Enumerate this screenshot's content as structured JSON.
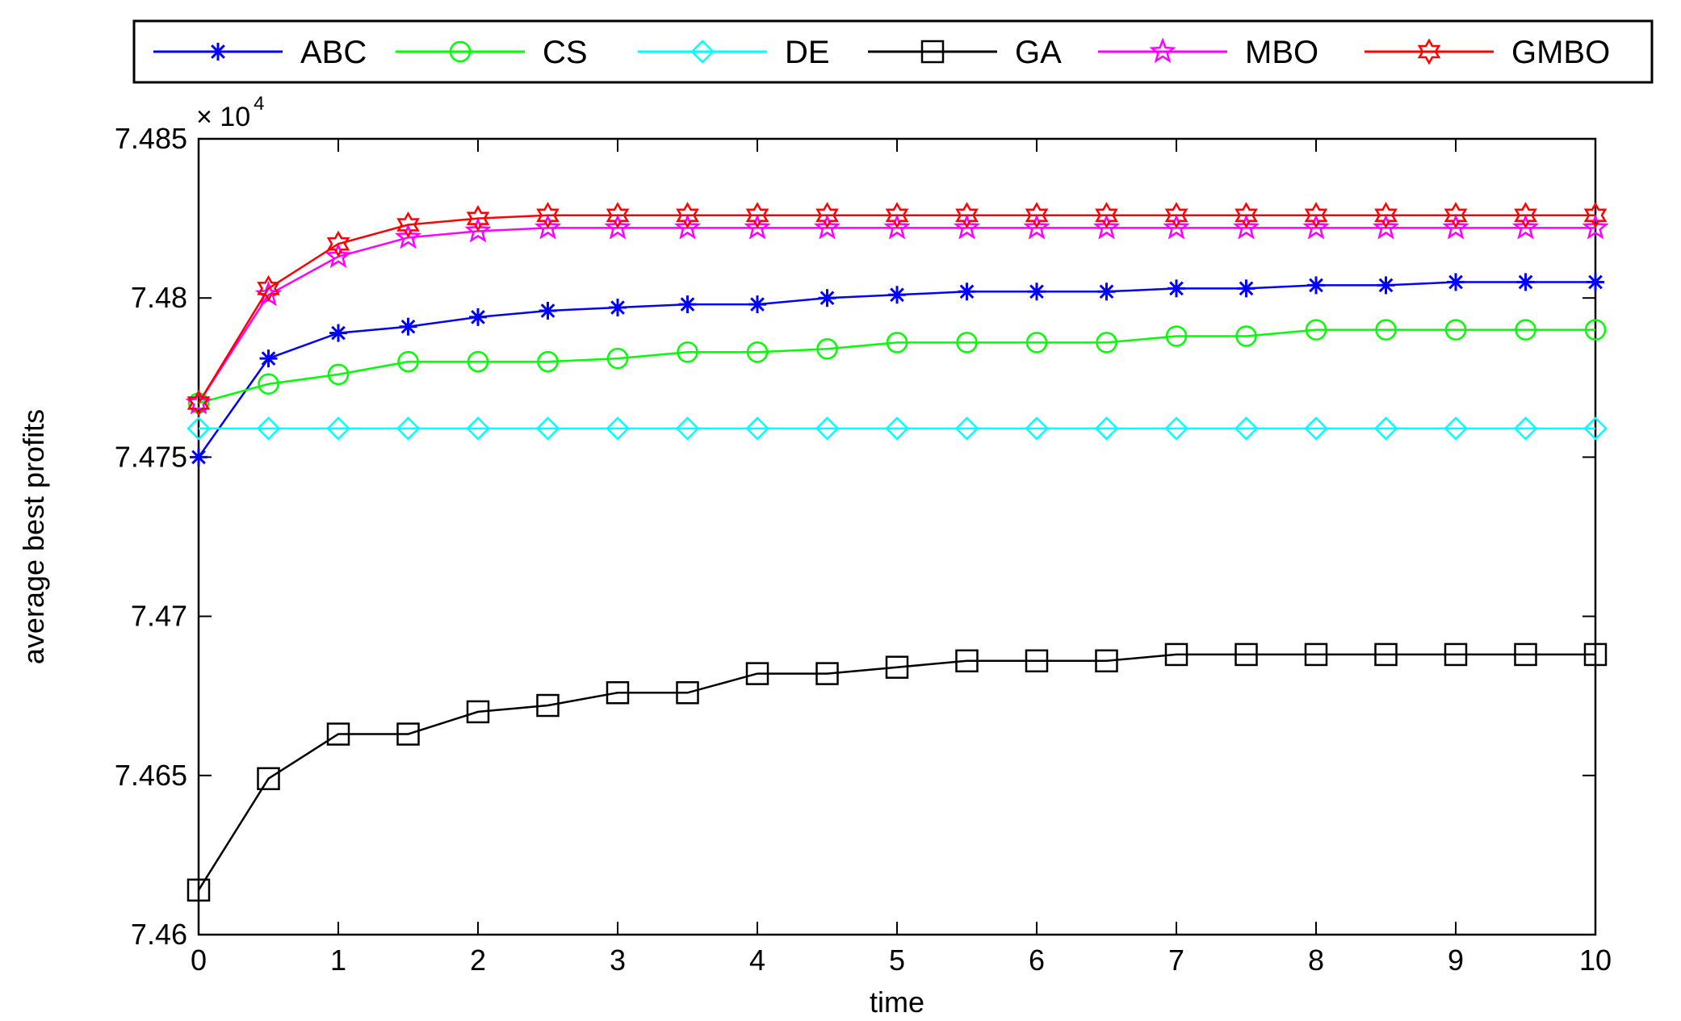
{
  "chart_data": {
    "type": "line",
    "title": "",
    "xlabel": "time",
    "ylabel": "average best profits",
    "y_exponent_base": "× 10",
    "y_exponent_power": "4",
    "xlim": [
      0,
      10
    ],
    "ylim": [
      7.46,
      7.485
    ],
    "xticks": [
      0,
      1,
      2,
      3,
      4,
      5,
      6,
      7,
      8,
      9,
      10
    ],
    "xtick_labels": [
      "0",
      "1",
      "2",
      "3",
      "4",
      "5",
      "6",
      "7",
      "8",
      "9",
      "10"
    ],
    "yticks": [
      7.46,
      7.465,
      7.47,
      7.475,
      7.48,
      7.485
    ],
    "ytick_labels": [
      "7.46",
      "7.465",
      "7.47",
      "7.475",
      "7.48",
      "7.485"
    ],
    "grid": false,
    "legend_position": "top",
    "x": [
      0,
      0.5,
      1,
      1.5,
      2,
      2.5,
      3,
      3.5,
      4,
      4.5,
      5,
      5.5,
      6,
      6.5,
      7,
      7.5,
      8,
      8.5,
      9,
      9.5,
      10
    ],
    "series": [
      {
        "name": "ABC",
        "color": "#0000ff",
        "marker": "star",
        "values": [
          7.475,
          7.4781,
          7.4789,
          7.4791,
          7.4794,
          7.4796,
          7.4797,
          7.4798,
          7.4798,
          7.48,
          7.4801,
          7.4802,
          7.4802,
          7.4802,
          7.4803,
          7.4803,
          7.4804,
          7.4804,
          7.4805,
          7.4805,
          7.4805
        ]
      },
      {
        "name": "CS",
        "color": "#00ff00",
        "marker": "circle",
        "values": [
          7.4767,
          7.4773,
          7.4776,
          7.478,
          7.478,
          7.478,
          7.4781,
          7.4783,
          7.4783,
          7.4784,
          7.4786,
          7.4786,
          7.4786,
          7.4786,
          7.4788,
          7.4788,
          7.479,
          7.479,
          7.479,
          7.479,
          7.479
        ]
      },
      {
        "name": "DE",
        "color": "#00ffff",
        "marker": "diamond",
        "values": [
          7.4759,
          7.4759,
          7.4759,
          7.4759,
          7.4759,
          7.4759,
          7.4759,
          7.4759,
          7.4759,
          7.4759,
          7.4759,
          7.4759,
          7.4759,
          7.4759,
          7.4759,
          7.4759,
          7.4759,
          7.4759,
          7.4759,
          7.4759,
          7.4759
        ]
      },
      {
        "name": "GA",
        "color": "#000000",
        "marker": "square",
        "values": [
          7.4614,
          7.4649,
          7.4663,
          7.4663,
          7.467,
          7.4672,
          7.4676,
          7.4676,
          7.4682,
          7.4682,
          7.4684,
          7.4686,
          7.4686,
          7.4686,
          7.4688,
          7.4688,
          7.4688,
          7.4688,
          7.4688,
          7.4688,
          7.4688
        ]
      },
      {
        "name": "MBO",
        "color": "#ff00ff",
        "marker": "pentagram",
        "values": [
          7.4767,
          7.4801,
          7.4813,
          7.4819,
          7.4821,
          7.4822,
          7.4822,
          7.4822,
          7.4822,
          7.4822,
          7.4822,
          7.4822,
          7.4822,
          7.4822,
          7.4822,
          7.4822,
          7.4822,
          7.4822,
          7.4822,
          7.4822,
          7.4822
        ]
      },
      {
        "name": "GMBO",
        "color": "#ff0000",
        "marker": "hexagram",
        "values": [
          7.4767,
          7.4803,
          7.4817,
          7.4823,
          7.4825,
          7.4826,
          7.4826,
          7.4826,
          7.4826,
          7.4826,
          7.4826,
          7.4826,
          7.4826,
          7.4826,
          7.4826,
          7.4826,
          7.4826,
          7.4826,
          7.4826,
          7.4826,
          7.4826
        ]
      }
    ]
  }
}
